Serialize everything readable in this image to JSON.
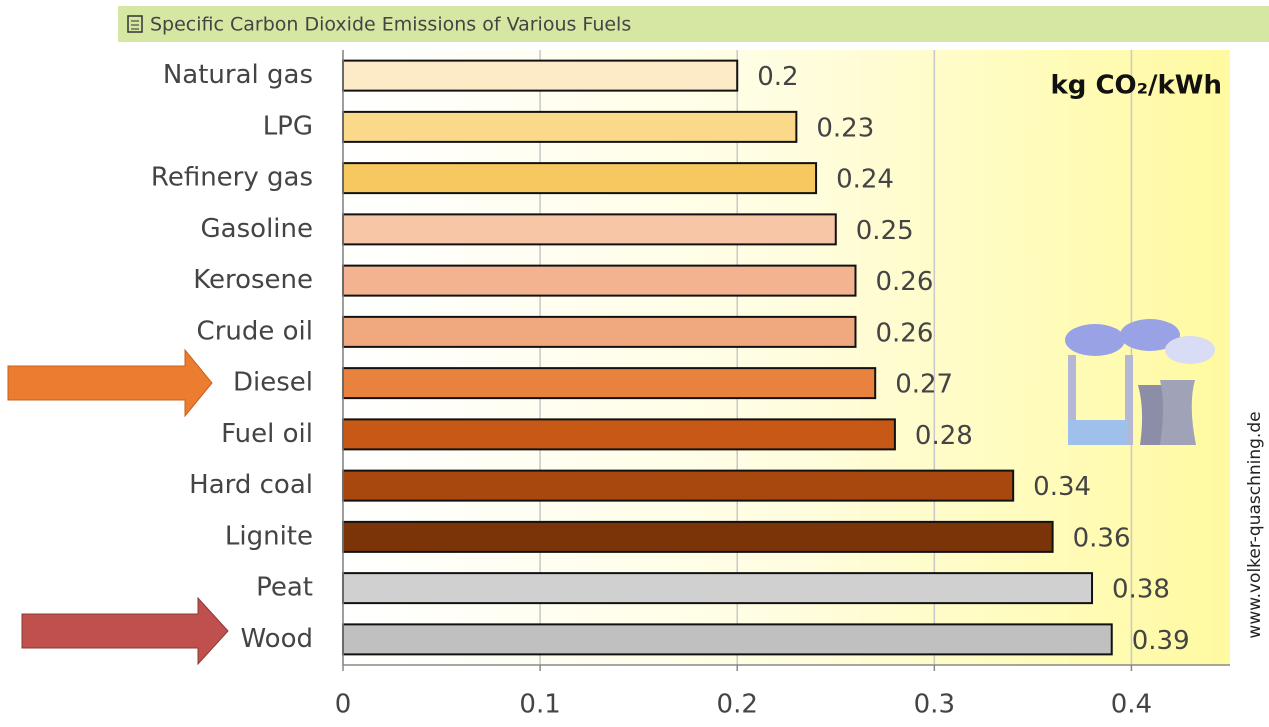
{
  "chart_data": {
    "type": "barh",
    "title": "Specific Carbon Dioxide Emissions of Various Fuels",
    "unit_label": "kg CO₂/kWh",
    "credit": "www.volker-quaschning.de",
    "categories": [
      "Natural gas",
      "LPG",
      "Refinery gas",
      "Gasoline",
      "Kerosene",
      "Crude oil",
      "Diesel",
      "Fuel oil",
      "Hard coal",
      "Lignite",
      "Peat",
      "Wood"
    ],
    "values": [
      0.2,
      0.23,
      0.24,
      0.25,
      0.26,
      0.26,
      0.27,
      0.28,
      0.34,
      0.36,
      0.38,
      0.39
    ],
    "colors": [
      "#fdebc8",
      "#fbd98a",
      "#f8c860",
      "#f6c6a6",
      "#f3b390",
      "#f0a87e",
      "#e8823e",
      "#c85816",
      "#a8480e",
      "#7a3408",
      "#d0d0d0",
      "#c0c0c0"
    ],
    "xlim": [
      0,
      0.45
    ],
    "xticks": [
      0,
      0.1,
      0.2,
      0.3,
      0.4
    ],
    "grid": true
  }
}
